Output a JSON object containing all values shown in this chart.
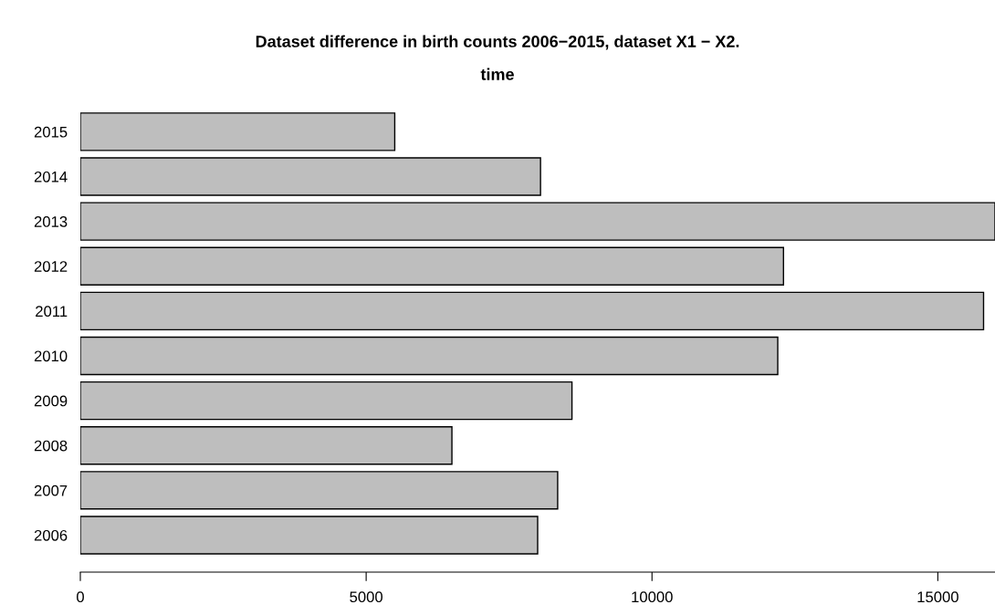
{
  "chart_data": {
    "type": "bar",
    "orientation": "horizontal",
    "title": "Dataset difference in birth counts 2006−2015, dataset X1 − X2.",
    "subtitle": "time",
    "categories": [
      "2015",
      "2014",
      "2013",
      "2012",
      "2011",
      "2010",
      "2009",
      "2008",
      "2007",
      "2006"
    ],
    "values": [
      5500,
      8050,
      16000,
      12300,
      15800,
      12200,
      8600,
      6500,
      8350,
      8000
    ],
    "color": "#bebebe",
    "xlim": [
      0,
      16000
    ],
    "xticks": [
      0,
      5000,
      10000,
      15000
    ],
    "grid": false,
    "legend": false
  }
}
